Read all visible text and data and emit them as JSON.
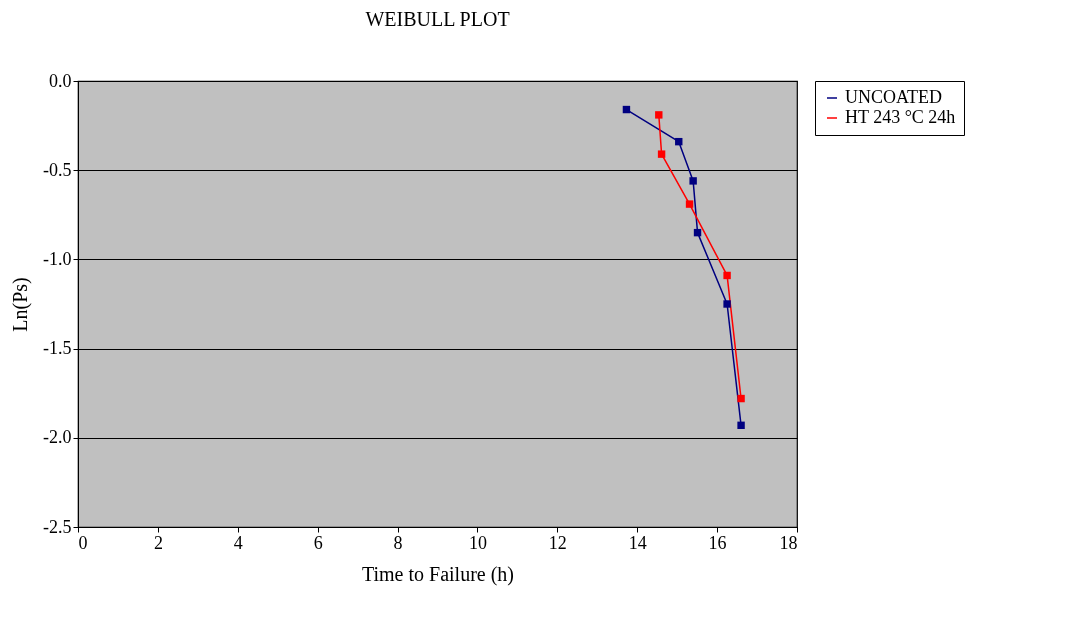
{
  "chart_data": {
    "type": "line",
    "title": "WEIBULL PLOT",
    "xlabel": "Time to Failure (h)",
    "ylabel": "Ln(Ps)",
    "xlim": [
      0,
      18
    ],
    "xticks": [
      0,
      2,
      4,
      6,
      8,
      10,
      12,
      14,
      16,
      18
    ],
    "ylim": [
      -2.5,
      0
    ],
    "yticks": [
      {
        "value": 0,
        "label": "0.0"
      },
      {
        "value": -0.5,
        "label": "-0.5"
      },
      {
        "value": -1,
        "label": "-1.0"
      },
      {
        "value": -1.5,
        "label": "-1.5"
      },
      {
        "value": -2,
        "label": "-2.0"
      },
      {
        "value": -2.5,
        "label": "-2.5"
      }
    ],
    "grid": "y",
    "legend": "right",
    "marker": "square",
    "line_style": "solid",
    "series": [
      {
        "name": "UNCOATED",
        "color": "#000080",
        "x": [
          13.73,
          15.04,
          15.4,
          15.51,
          16.25,
          16.6
        ],
        "values": [
          -0.16,
          -0.34,
          -0.56,
          -0.85,
          -1.25,
          -1.93
        ]
      },
      {
        "name": "HT 243 °C 24h",
        "color": "#ff0000",
        "x": [
          14.54,
          14.61,
          15.31,
          16.25,
          16.6
        ],
        "values": [
          -0.19,
          -0.41,
          -0.69,
          -1.09,
          -1.78
        ]
      }
    ]
  }
}
